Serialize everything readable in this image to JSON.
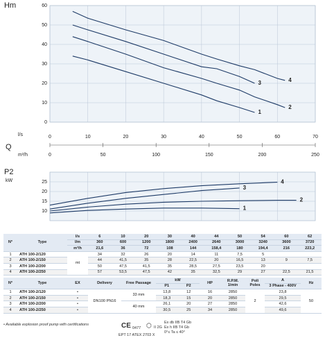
{
  "chart_data": [
    {
      "type": "line",
      "y_label": "Hm",
      "x_label": "l/s",
      "q_label": "Q",
      "x2_label": "m³/h",
      "xlim": [
        0,
        70
      ],
      "xticks": [
        0,
        10,
        20,
        30,
        40,
        50,
        60,
        70
      ],
      "ylim": [
        0,
        60
      ],
      "yticks": [
        0,
        10,
        20,
        30,
        40,
        50,
        60
      ],
      "x2lim": [
        0,
        250
      ],
      "x2ticks": [
        0,
        50,
        100,
        150,
        200,
        250
      ],
      "grid": true,
      "color": "#1d3a66",
      "x": [
        6,
        10,
        20,
        30,
        40,
        44,
        50,
        54,
        60,
        62
      ],
      "series": [
        {
          "name": "1",
          "values": [
            34,
            32,
            26,
            20,
            14,
            11,
            7.5,
            5,
            null,
            null
          ]
        },
        {
          "name": "2",
          "values": [
            44,
            41.5,
            35,
            28,
            22.5,
            20,
            16.5,
            13,
            9,
            7.5
          ]
        },
        {
          "name": "3",
          "values": [
            50,
            47.5,
            41.5,
            35,
            28.5,
            27.5,
            23.5,
            20,
            null,
            null
          ]
        },
        {
          "name": "4",
          "values": [
            57,
            53.5,
            47.5,
            42,
            35,
            32.5,
            29,
            27,
            22.5,
            21.5
          ]
        }
      ]
    },
    {
      "type": "line",
      "y_label": "P2",
      "y_unit": "kW",
      "xlim": [
        0,
        70
      ],
      "ylim": [
        5,
        30
      ],
      "yticks": [
        10,
        15,
        20,
        25
      ],
      "grid": true,
      "color": "#1d3a66",
      "x": [
        0,
        10,
        20,
        30,
        40,
        50,
        60,
        65
      ],
      "series": [
        {
          "name": "1",
          "values": [
            9,
            10.3,
            11,
            11.5,
            11.5,
            11.2,
            null,
            null
          ]
        },
        {
          "name": "2",
          "values": [
            10,
            12,
            13.5,
            14.5,
            15,
            15.3,
            15.5,
            15.5
          ]
        },
        {
          "name": "3",
          "values": [
            11,
            14,
            16.5,
            18.5,
            20.5,
            21.8,
            null,
            null
          ]
        },
        {
          "name": "4",
          "values": [
            13,
            16.5,
            19.5,
            21.5,
            23,
            24,
            24.8,
            null
          ]
        }
      ]
    }
  ],
  "table1": {
    "n": "N°",
    "type": "Type",
    "units": [
      "l/s",
      "l/m",
      "m³/h"
    ],
    "flows": [
      [
        "6",
        "10",
        "20",
        "30",
        "40",
        "44",
        "50",
        "54",
        "60",
        "62"
      ],
      [
        "360",
        "600",
        "1200",
        "1800",
        "2400",
        "2640",
        "3000",
        "3240",
        "3600",
        "3720"
      ],
      [
        "21,6",
        "36",
        "72",
        "108",
        "144",
        "158,4",
        "180",
        "194,4",
        "216",
        "223,2"
      ]
    ],
    "unit": "mt",
    "rows": [
      {
        "n": "1",
        "type": "ATH 100-2/120",
        "values": [
          "34",
          "32",
          "26",
          "20",
          "14",
          "11",
          "7,5",
          "5",
          null,
          null
        ]
      },
      {
        "n": "2",
        "type": "ATH 100-2/150",
        "values": [
          "44",
          "41,5",
          "35",
          "28",
          "22,5",
          "20",
          "16,5",
          "13",
          "9",
          "7,5"
        ]
      },
      {
        "n": "3",
        "type": "ATH 100-2/200",
        "values": [
          "50",
          "47,5",
          "41,5",
          "35",
          "28,5",
          "27,5",
          "23,5",
          "20",
          null,
          null
        ]
      },
      {
        "n": "4",
        "type": "ATH 100-2/250",
        "values": [
          "57",
          "53,5",
          "47,5",
          "42",
          "35",
          "32,5",
          "29",
          "27",
          "22,5",
          "21,5"
        ]
      }
    ]
  },
  "table2": {
    "headers": {
      "n": "N°",
      "type": "Type",
      "ex": "EX",
      "delivery": "Delivery",
      "free_passage": "Free Passage",
      "kw": "kW",
      "p1": "P1",
      "p2": "P2",
      "hp": "HP",
      "rpm": "R.P.M.",
      "rpm_unit": "1/min",
      "poles": "Poli",
      "poles_en": "Poles",
      "amps": "A",
      "phase": "3 Phase - 400V",
      "hz": "Hz"
    },
    "delivery": "DN100 PN16",
    "free_passage": [
      "33 mm",
      "40 mm"
    ],
    "poles": "2",
    "hz": "50",
    "rows": [
      {
        "n": "1",
        "type": "ATH 100-2/120",
        "ex": "•",
        "p1": "13,8",
        "p2": "12",
        "hp": "16",
        "rpm": "2850",
        "amps": "23,8"
      },
      {
        "n": "2",
        "type": "ATH 100-2/150",
        "ex": "•",
        "p1": "18,3",
        "p2": "15",
        "hp": "20",
        "rpm": "2850",
        "amps": "29,5"
      },
      {
        "n": "3",
        "type": "ATH 100-2/200",
        "ex": "•",
        "p1": "26,1",
        "p2": "20",
        "hp": "27",
        "rpm": "2850",
        "amps": "42,6"
      },
      {
        "n": "4",
        "type": "ATH 100-2/250",
        "ex": "•",
        "p1": "30,5",
        "p2": "25",
        "hp": "34",
        "rpm": "2850",
        "amps": "49,6"
      }
    ]
  },
  "footer": {
    "note": "• Available explosion proof pump with certifications",
    "ce": "CE",
    "notified": "0477",
    "atex": "EPT 17 ATEX 2703 X",
    "group": "II 2G",
    "ex1": "Ex db IIB T4 Gb",
    "ex2": "Ex h IIB T4 Gb",
    "ta": "0°≤ Ta ≤ 40°"
  }
}
